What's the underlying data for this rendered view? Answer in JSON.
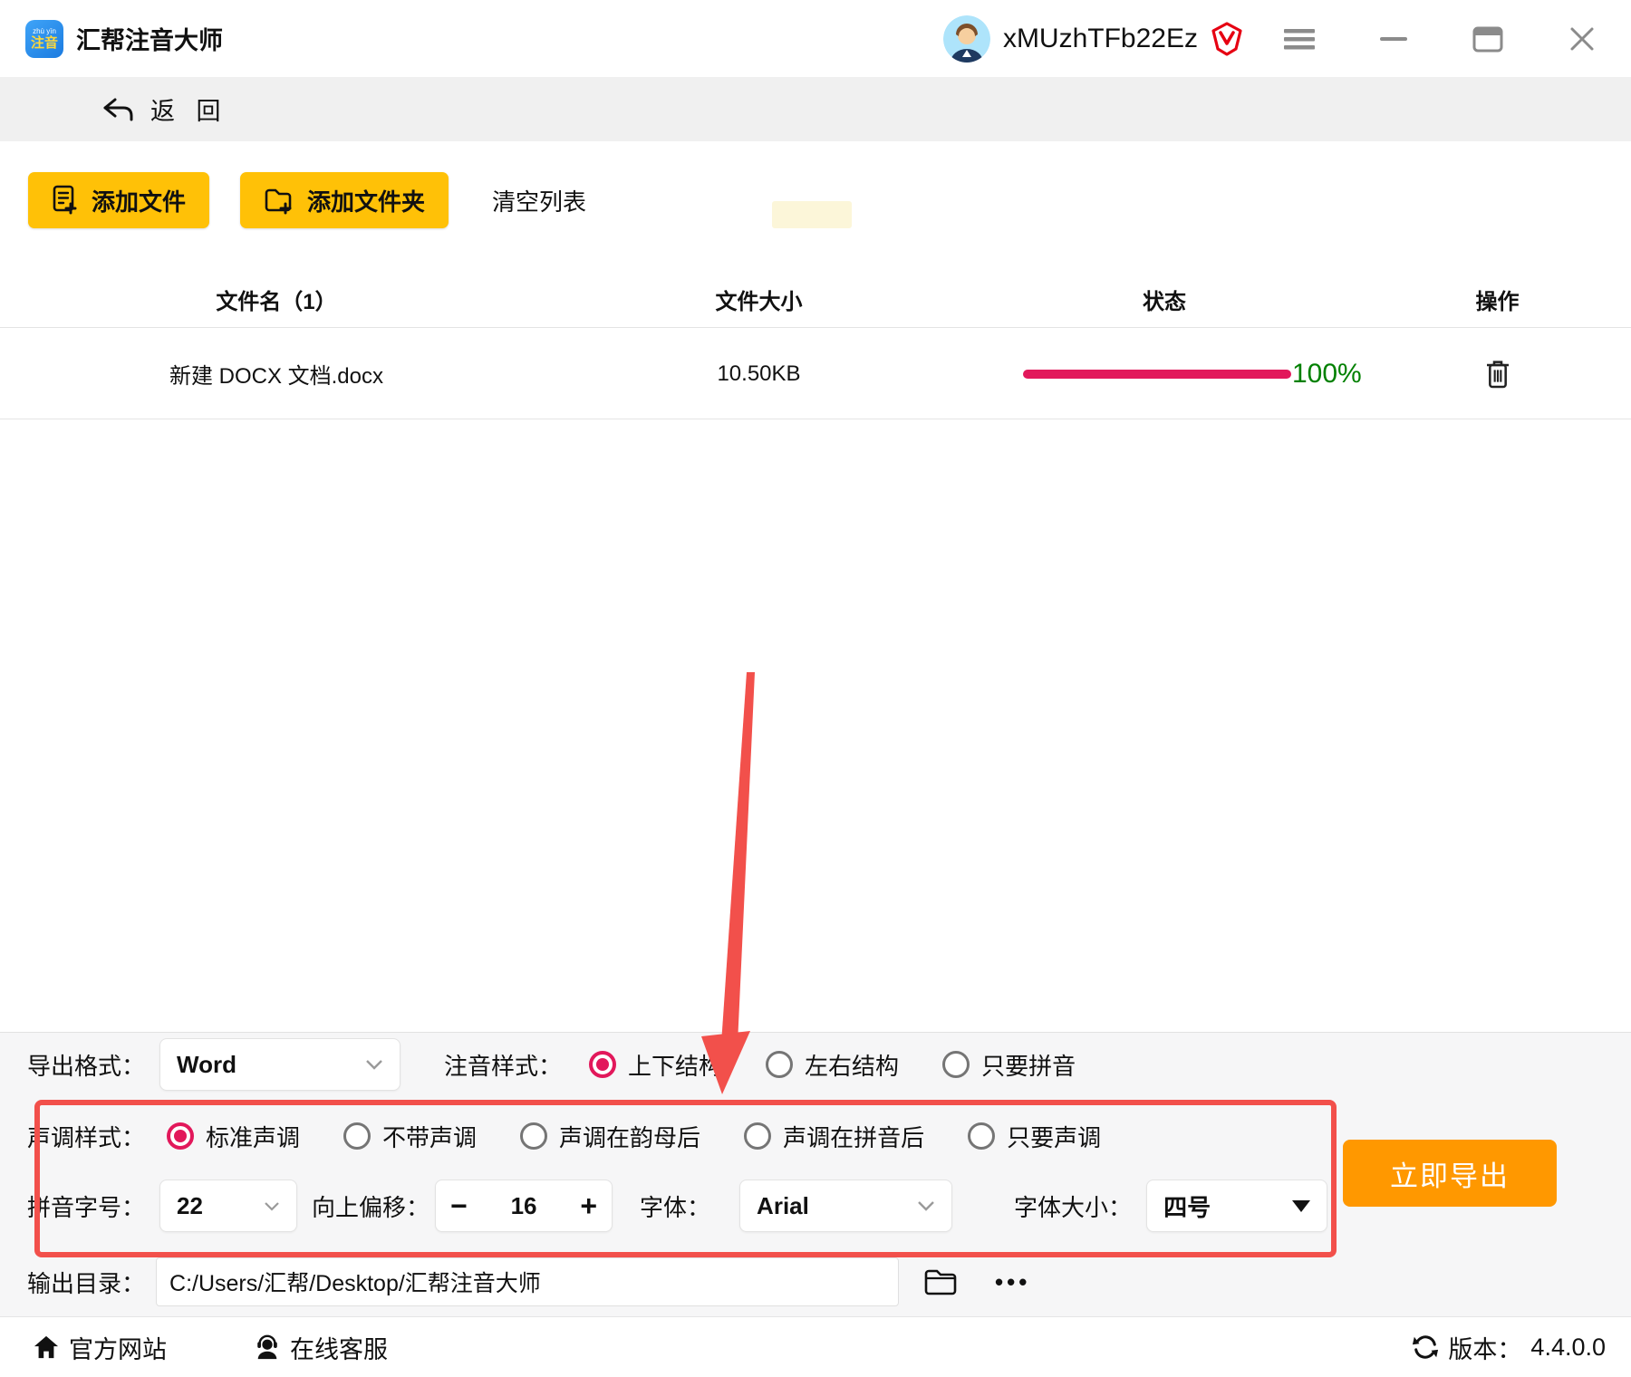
{
  "titlebar": {
    "app_title": "汇帮注音大师",
    "app_icon_line1": "zhù yīn",
    "app_icon_line2": "注音",
    "username": "xMUzhTFb22Ez"
  },
  "nav": {
    "back_label": "返 回"
  },
  "toolbar": {
    "add_file": "添加文件",
    "add_folder": "添加文件夹",
    "clear_list": "清空列表"
  },
  "table": {
    "headers": [
      "文件名（1）",
      "文件大小",
      "状态",
      "操作"
    ],
    "rows": [
      {
        "name": "新建 DOCX 文档.docx",
        "size": "10.50KB",
        "progress": "100%",
        "progress_value": 100
      }
    ]
  },
  "settings": {
    "export_format_label": "导出格式：",
    "export_format_value": "Word",
    "zhuyin_style_label": "注音样式：",
    "zhuyin_options": [
      {
        "label": "上下结构",
        "selected": true
      },
      {
        "label": "左右结构",
        "selected": false
      },
      {
        "label": "只要拼音",
        "selected": false
      }
    ],
    "tone_style_label": "声调样式：",
    "tone_options": [
      {
        "label": "标准声调",
        "selected": true
      },
      {
        "label": "不带声调",
        "selected": false
      },
      {
        "label": "声调在韵母后",
        "selected": false
      },
      {
        "label": "声调在拼音后",
        "selected": false
      },
      {
        "label": "只要声调",
        "selected": false
      }
    ],
    "pinyin_size_label": "拼音字号：",
    "pinyin_size_value": "22",
    "offset_label": "向上偏移：",
    "offset_minus": "−",
    "offset_value": "16",
    "offset_plus": "+",
    "font_label": "字体：",
    "font_value": "Arial",
    "font_size_label": "字体大小：",
    "font_size_value": "四号",
    "export_button": "立即导出",
    "output_dir_label": "输出目录：",
    "output_dir_value": "C:/Users/汇帮/Desktop/汇帮注音大师",
    "more_label": "•••"
  },
  "footer": {
    "official_site": "官方网站",
    "online_service": "在线客服",
    "version_label": "版本：",
    "version_value": "4.4.0.0"
  },
  "colors": {
    "accent_yellow": "#FFC107",
    "progress_pink": "#E2185B",
    "success_green": "#008000",
    "export_orange": "#FF9800",
    "annotation_red": "#F2504B",
    "brand_blue": "#2196F3"
  }
}
